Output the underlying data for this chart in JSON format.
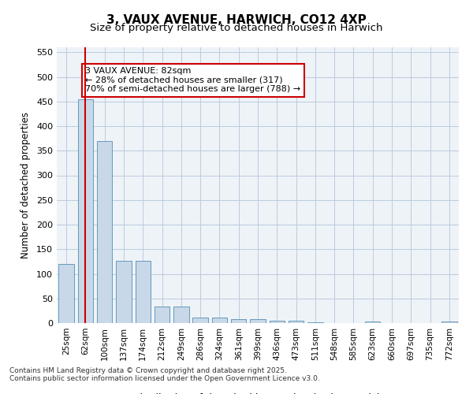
{
  "title": "3, VAUX AVENUE, HARWICH, CO12 4XP",
  "subtitle": "Size of property relative to detached houses in Harwich",
  "xlabel": "Distribution of detached houses by size in Harwich",
  "ylabel": "Number of detached properties",
  "categories": [
    "25sqm",
    "62sqm",
    "100sqm",
    "137sqm",
    "174sqm",
    "212sqm",
    "249sqm",
    "286sqm",
    "324sqm",
    "361sqm",
    "399sqm",
    "436sqm",
    "473sqm",
    "511sqm",
    "548sqm",
    "585sqm",
    "623sqm",
    "660sqm",
    "697sqm",
    "735sqm",
    "772sqm"
  ],
  "values": [
    120,
    455,
    370,
    127,
    127,
    33,
    33,
    12,
    12,
    8,
    8,
    5,
    5,
    2,
    0,
    0,
    3,
    0,
    0,
    0,
    3
  ],
  "bar_color": "#c8d8e8",
  "bar_edge_color": "#6699bb",
  "vline_x": 1,
  "vline_color": "#cc0000",
  "annotation_text": "3 VAUX AVENUE: 82sqm\n← 28% of detached houses are smaller (317)\n70% of semi-detached houses are larger (788) →",
  "annotation_box_color": "#cc0000",
  "grid_color": "#bbccdd",
  "background_color": "#eef3f8",
  "footer_text": "Contains HM Land Registry data © Crown copyright and database right 2025.\nContains public sector information licensed under the Open Government Licence v3.0.",
  "ylim": [
    0,
    560
  ],
  "yticks": [
    0,
    50,
    100,
    150,
    200,
    250,
    300,
    350,
    400,
    450,
    500,
    550
  ]
}
